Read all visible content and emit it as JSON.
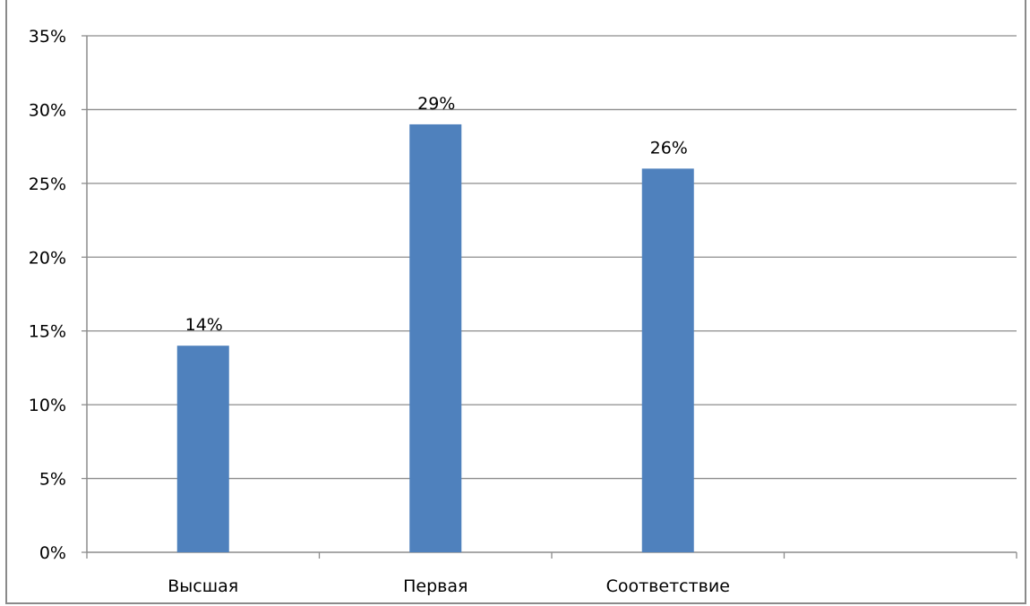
{
  "chart_data": {
    "type": "bar",
    "title": "",
    "categories": [
      "Высшая",
      "Первая",
      "Соответствие",
      ""
    ],
    "series": [
      {
        "values": [
          14,
          29,
          26,
          null
        ]
      }
    ],
    "data_labels": [
      "14%",
      "29%",
      "26%",
      ""
    ],
    "ylim": [
      0,
      35
    ],
    "y_ticks": [
      0,
      5,
      10,
      15,
      20,
      25,
      30,
      35
    ],
    "y_tick_labels": [
      "0%",
      "5%",
      "10%",
      "15%",
      "20%",
      "25%",
      "30%",
      "35%"
    ],
    "grid": true,
    "legend": "none",
    "bar_color": "#4f81bd",
    "gridline_color": "#8c8c8c"
  }
}
